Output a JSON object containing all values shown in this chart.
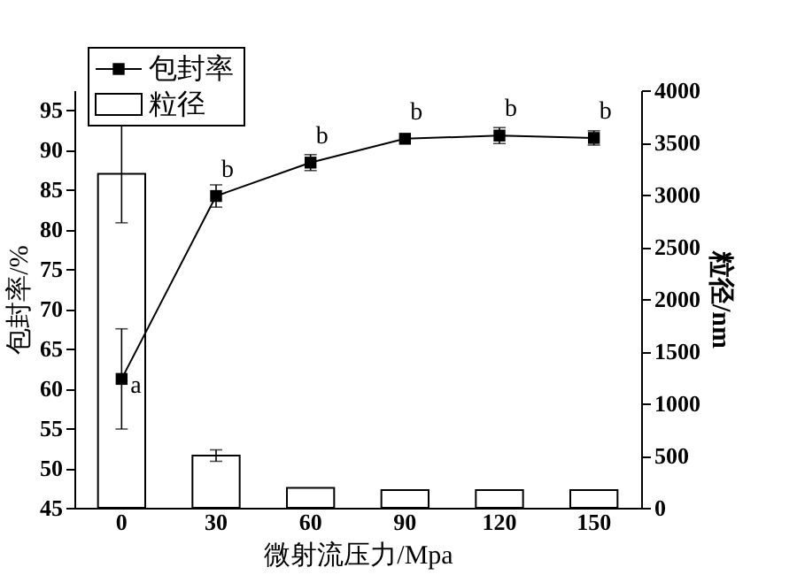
{
  "chart_data": {
    "type": "bar",
    "xlabel": "微射流压力/Mpa",
    "ylabel": "包封率/%",
    "y2label": "粒径/nm",
    "categories": [
      "0",
      "30",
      "60",
      "90",
      "120",
      "150"
    ],
    "series": [
      {
        "name": "包封率",
        "type": "line",
        "color": "#000000",
        "values": [
          61.2,
          84.2,
          88.4,
          91.4,
          91.8,
          91.5
        ],
        "errors": [
          6.3,
          1.4,
          1.0,
          null,
          1.0,
          0.9
        ]
      },
      {
        "name": "粒径",
        "axis": "y2",
        "color": "#ffffff",
        "values": [
          3200,
          500,
          190,
          170,
          170,
          170
        ],
        "errors": [
          470,
          55,
          null,
          null,
          null,
          null
        ]
      }
    ],
    "ylim": [
      45,
      97.5
    ],
    "yticks": [
      45,
      50,
      55,
      60,
      65,
      70,
      75,
      80,
      85,
      90,
      95
    ],
    "y2lim": [
      0,
      4000
    ],
    "y2ticks": [
      0,
      500,
      1000,
      1500,
      2000,
      2500,
      3000,
      3500,
      4000
    ],
    "marker": "square",
    "legend": "top left",
    "grid": false,
    "annotations": [
      {
        "text": "a",
        "x": "0",
        "y": 61.2
      },
      {
        "text": "b",
        "x": "30",
        "y": 84.2
      },
      {
        "text": "b",
        "x": "60",
        "y": 88.4
      },
      {
        "text": "b",
        "x": "90",
        "y": 91.4
      },
      {
        "text": "b",
        "x": "120",
        "y": 91.8
      },
      {
        "text": "b",
        "x": "150",
        "y": 91.5
      }
    ]
  }
}
